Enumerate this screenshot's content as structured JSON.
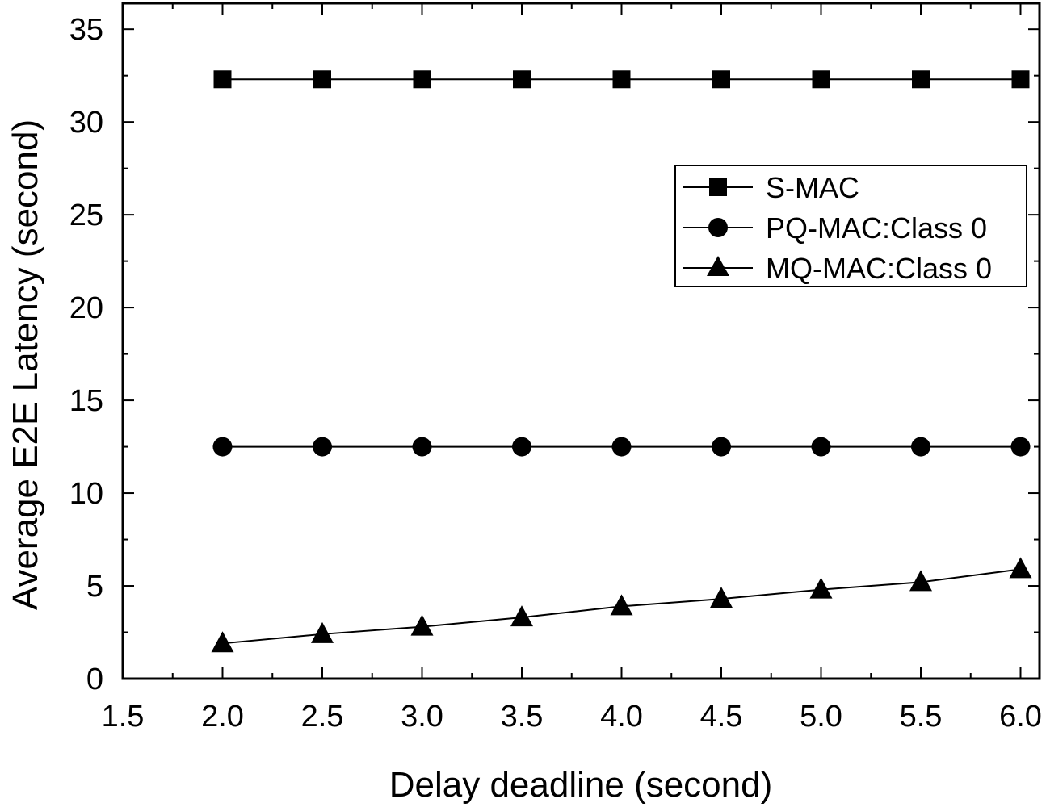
{
  "chart_data": {
    "type": "line",
    "title": "",
    "xlabel": "Delay deadline (second)",
    "ylabel": "Average E2E Latency (second)",
    "xlim": [
      1.5,
      6.0
    ],
    "ylim": [
      0,
      35
    ],
    "x_ticks": [
      "1.5",
      "2.0",
      "2.5",
      "3.0",
      "3.5",
      "4.0",
      "4.5",
      "5.0",
      "5.5",
      "6.0"
    ],
    "y_ticks": [
      "0",
      "5",
      "10",
      "15",
      "20",
      "25",
      "30",
      "35"
    ],
    "x": [
      2.0,
      2.5,
      3.0,
      3.5,
      4.0,
      4.5,
      5.0,
      5.5,
      6.0
    ],
    "series": [
      {
        "name": "S-MAC",
        "marker": "square",
        "values": [
          32.3,
          32.3,
          32.3,
          32.3,
          32.3,
          32.3,
          32.3,
          32.3,
          32.3
        ]
      },
      {
        "name": "PQ-MAC:Class 0",
        "marker": "circle",
        "values": [
          12.5,
          12.5,
          12.5,
          12.5,
          12.5,
          12.5,
          12.5,
          12.5,
          12.5
        ]
      },
      {
        "name": "MQ-MAC:Class 0",
        "marker": "triangle",
        "values": [
          1.9,
          2.4,
          2.8,
          3.3,
          3.9,
          4.3,
          4.8,
          5.2,
          5.9
        ]
      }
    ],
    "grid": false,
    "legend_position": "upper-right",
    "colors": {
      "line": "#000000",
      "marker": "#000000",
      "background": "#ffffff"
    }
  }
}
